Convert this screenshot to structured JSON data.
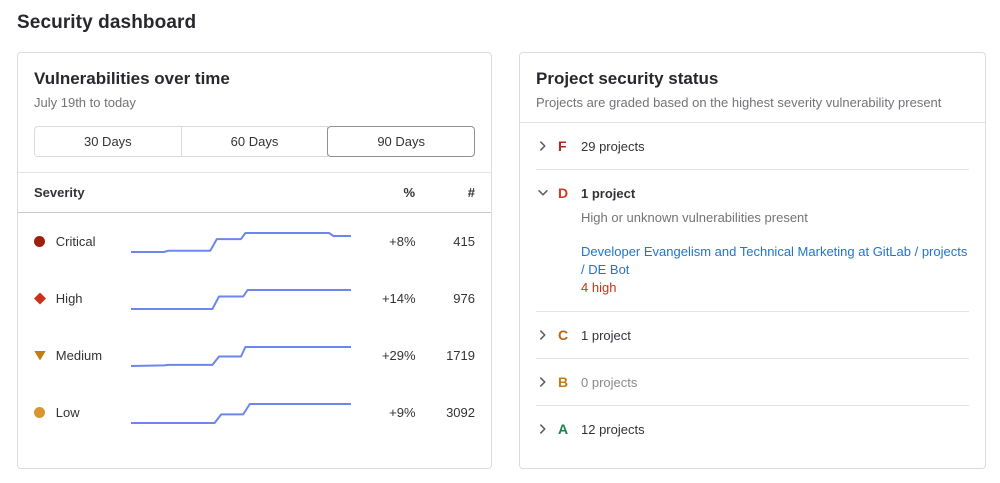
{
  "page": {
    "title": "Security dashboard"
  },
  "colors": {
    "sparkline_blue": "#6d86ec",
    "link_blue": "#1f75cb",
    "severity_critical": "#9e1f0d",
    "severity_high": "#cc3018",
    "severity_medium": "#c17d10",
    "severity_low": "#d99530",
    "grade_f": "#b2281a",
    "grade_d": "#d13a28",
    "grade_c": "#c2610e",
    "grade_b": "#c17d10",
    "grade_a": "#1d824d"
  },
  "vulnerabilities_panel": {
    "title": "Vulnerabilities over time",
    "subtitle": "July 19th to today",
    "range_buttons": [
      {
        "label": "30 Days",
        "selected": false
      },
      {
        "label": "60 Days",
        "selected": false
      },
      {
        "label": "90 Days",
        "selected": true
      }
    ],
    "table": {
      "headers": {
        "severity": "Severity",
        "percent": "%",
        "count": "#"
      },
      "rows": [
        {
          "severity": "Critical",
          "percent": "+8%",
          "count": "415"
        },
        {
          "severity": "High",
          "percent": "+14%",
          "count": "976"
        },
        {
          "severity": "Medium",
          "percent": "+29%",
          "count": "1719"
        },
        {
          "severity": "Low",
          "percent": "+9%",
          "count": "3092"
        }
      ]
    }
  },
  "project_status_panel": {
    "title": "Project security status",
    "subtitle": "Projects are graded based on the highest severity vulnerability present",
    "grades": [
      {
        "letter": "F",
        "count_label": "29 projects",
        "expanded": false
      },
      {
        "letter": "D",
        "count_label": "1 project",
        "expanded": true,
        "description": "High or unknown vulnerabilities present",
        "project_link": "Developer Evangelism and Technical Marketing at GitLab / projects / DE Bot",
        "severity_badge": "4 high"
      },
      {
        "letter": "C",
        "count_label": "1 project",
        "expanded": false
      },
      {
        "letter": "B",
        "count_label": "0 projects",
        "expanded": false
      },
      {
        "letter": "A",
        "count_label": "12 projects",
        "expanded": false
      }
    ]
  },
  "chart_data": [
    {
      "type": "line",
      "name": "Critical vulnerabilities sparkline",
      "x_range_label": "July 19th to today (90 Days)",
      "y_note": "normalized count 0-1, trend +8%, current total 415",
      "trend": "+8%",
      "end_value": 415,
      "color": "#6d86ec",
      "points": [
        [
          0,
          0
        ],
        [
          15,
          0
        ],
        [
          17,
          0.07
        ],
        [
          36,
          0.07
        ],
        [
          39,
          0.68
        ],
        [
          50,
          0.68
        ],
        [
          52,
          1.0
        ],
        [
          90,
          1.0
        ],
        [
          92,
          0.84
        ],
        [
          100,
          0.84
        ]
      ]
    },
    {
      "type": "line",
      "name": "High vulnerabilities sparkline",
      "x_range_label": "July 19th to today (90 Days)",
      "y_note": "normalized count 0-1, trend +14%, current total 976",
      "trend": "+14%",
      "end_value": 976,
      "color": "#6d86ec",
      "points": [
        [
          0,
          0
        ],
        [
          37,
          0
        ],
        [
          40,
          0.66
        ],
        [
          51,
          0.66
        ],
        [
          53,
          1.0
        ],
        [
          100,
          1.0
        ]
      ]
    },
    {
      "type": "line",
      "name": "Medium vulnerabilities sparkline",
      "x_range_label": "July 19th to today (90 Days)",
      "y_note": "normalized count 0-1, trend +29%, current total 1719",
      "trend": "+29%",
      "end_value": 1719,
      "color": "#6d86ec",
      "points": [
        [
          0,
          0
        ],
        [
          15,
          0.03
        ],
        [
          17,
          0.06
        ],
        [
          37,
          0.06
        ],
        [
          40,
          0.5
        ],
        [
          50,
          0.5
        ],
        [
          52,
          1.0
        ],
        [
          100,
          1.0
        ]
      ]
    },
    {
      "type": "line",
      "name": "Low vulnerabilities sparkline",
      "x_range_label": "July 19th to today (90 Days)",
      "y_note": "normalized count 0-1, trend +9%, current total 3092",
      "trend": "+9%",
      "end_value": 3092,
      "color": "#6d86ec",
      "points": [
        [
          0,
          0
        ],
        [
          38,
          0
        ],
        [
          41,
          0.45
        ],
        [
          51,
          0.45
        ],
        [
          54,
          1.0
        ],
        [
          100,
          1.0
        ]
      ]
    }
  ]
}
